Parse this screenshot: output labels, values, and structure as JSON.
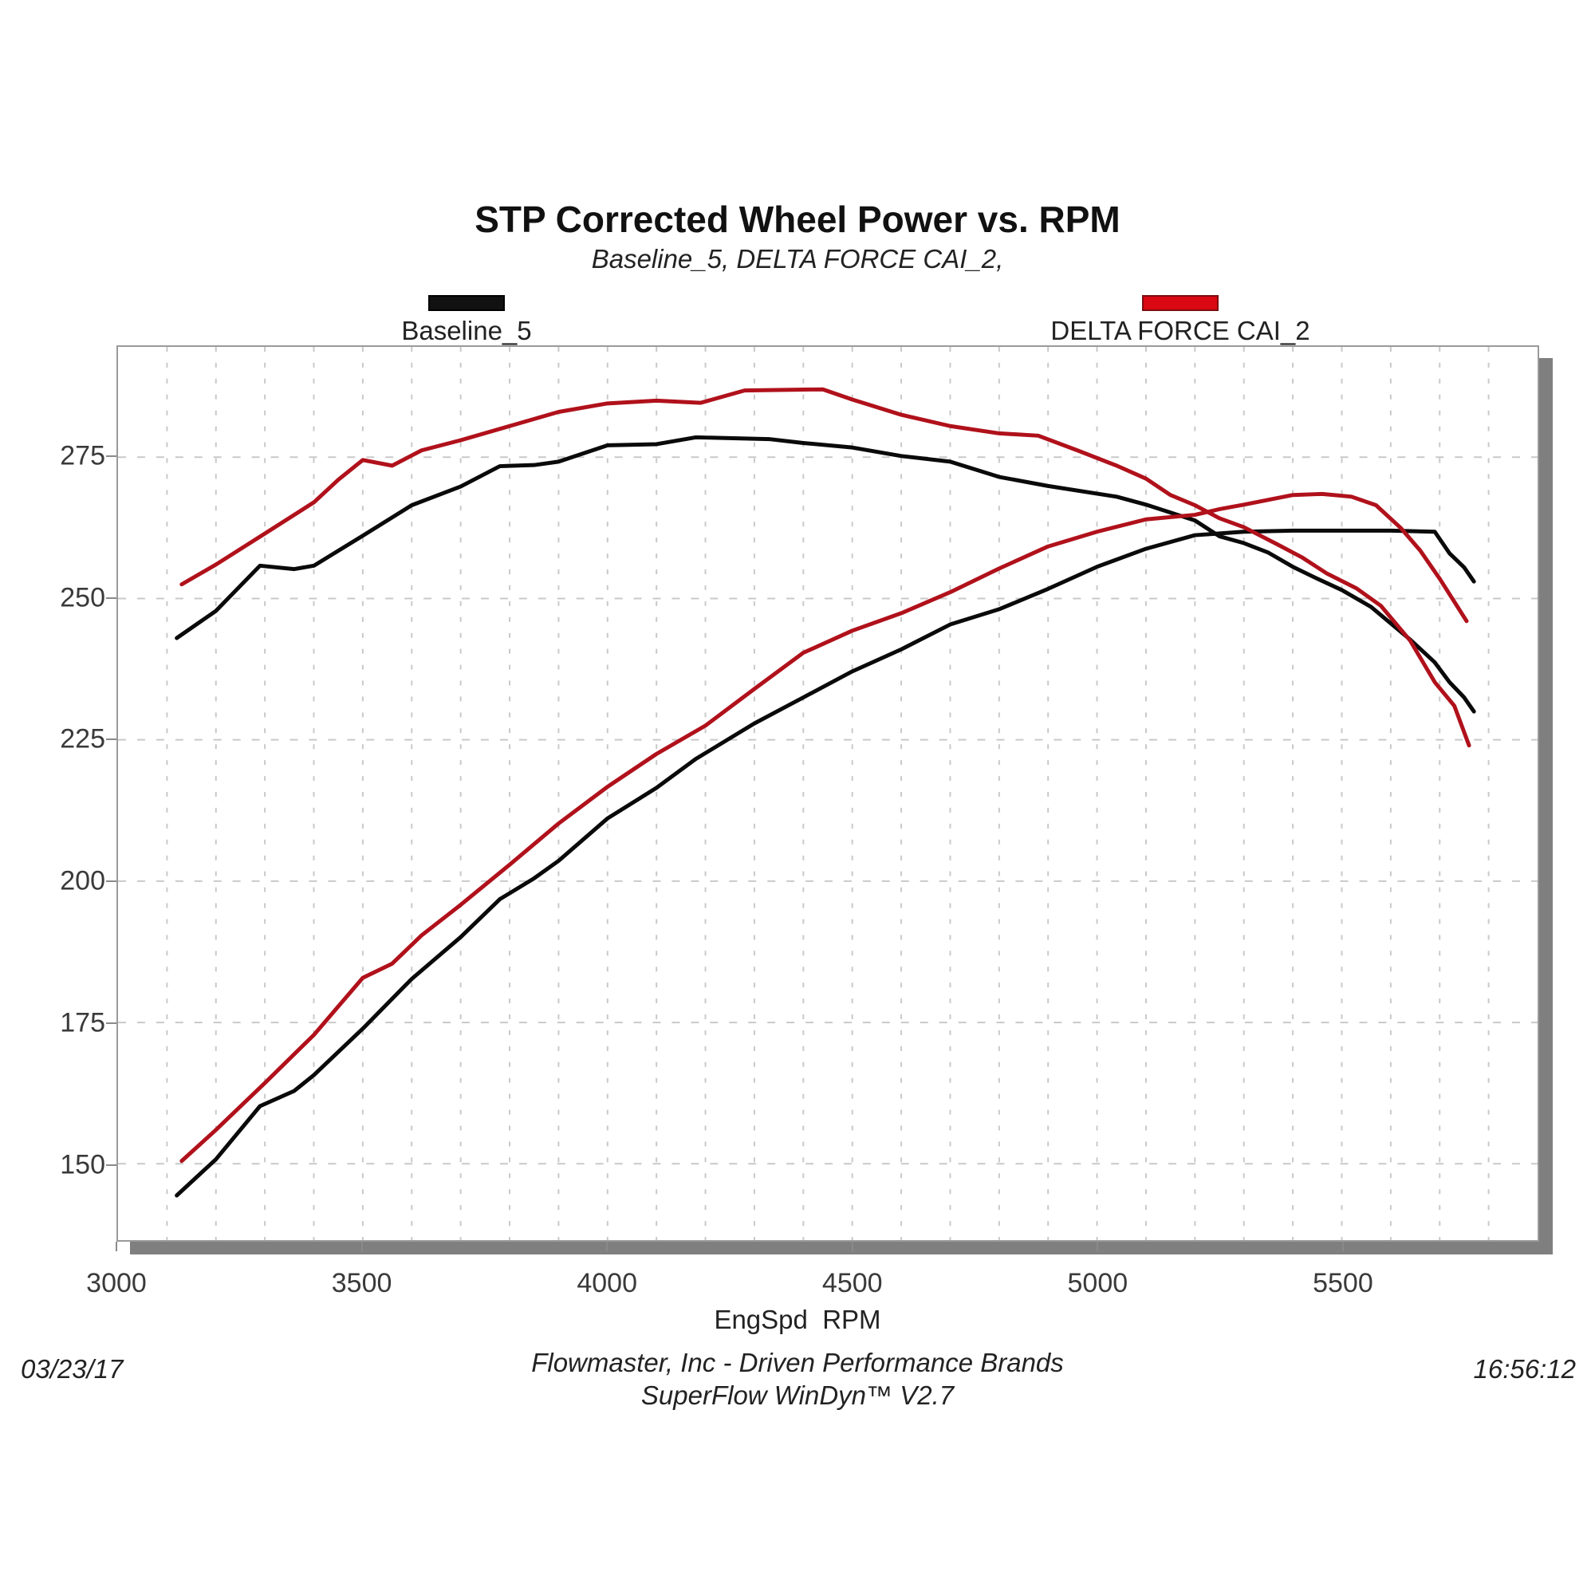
{
  "header": {
    "title": "STP Corrected Wheel Power vs. RPM",
    "subtitle": "Baseline_5, DELTA FORCE CAI_2,"
  },
  "legend": {
    "items": [
      {
        "label": "Baseline_5",
        "color": "#111111"
      },
      {
        "label": "DELTA FORCE CAI_2",
        "color": "#da0812"
      }
    ]
  },
  "footer": {
    "company_line": "Flowmaster, Inc - Driven Performance Brands",
    "software_line": "SuperFlow WinDyn™ V2.7",
    "date": "03/23/17",
    "time": "16:56:12"
  },
  "chart_data": {
    "type": "line",
    "title": "STP Corrected Wheel Power vs. RPM",
    "subtitle": "Baseline_5, DELTA FORCE CAI_2,",
    "xlabel": "EngSpd  RPM",
    "ylabel": "",
    "xlim": [
      3000,
      5900
    ],
    "ylim": [
      136.5,
      294.5
    ],
    "x_ticks": [
      3000,
      3500,
      4000,
      4500,
      5000,
      5500
    ],
    "y_ticks": [
      150,
      175,
      200,
      225,
      250,
      275
    ],
    "x_minor_grid_step": 100,
    "grid": "dashed",
    "legend_position": "top",
    "colors": {
      "baseline": "#0a0a0a",
      "delta_force": "#b0111b",
      "grid": "#c9c9c9",
      "border": "#9a9a9a",
      "shadow": "#7f7f7f"
    },
    "series": [
      {
        "name": "Baseline_5 (torque trace)",
        "color": "#0a0a0a",
        "width": 5,
        "points": [
          [
            3120,
            243.0
          ],
          [
            3200,
            247.8
          ],
          [
            3290,
            255.8
          ],
          [
            3360,
            255.2
          ],
          [
            3400,
            255.8
          ],
          [
            3500,
            261.1
          ],
          [
            3600,
            266.5
          ],
          [
            3700,
            269.8
          ],
          [
            3780,
            273.4
          ],
          [
            3850,
            273.6
          ],
          [
            3900,
            274.2
          ],
          [
            4000,
            277.1
          ],
          [
            4100,
            277.3
          ],
          [
            4180,
            278.5
          ],
          [
            4330,
            278.2
          ],
          [
            4400,
            277.5
          ],
          [
            4500,
            276.7
          ],
          [
            4600,
            275.2
          ],
          [
            4700,
            274.2
          ],
          [
            4800,
            271.5
          ],
          [
            4900,
            269.9
          ],
          [
            5040,
            268.0
          ],
          [
            5100,
            266.6
          ],
          [
            5200,
            263.8
          ],
          [
            5250,
            261.0
          ],
          [
            5300,
            259.8
          ],
          [
            5350,
            258.1
          ],
          [
            5400,
            255.6
          ],
          [
            5450,
            253.5
          ],
          [
            5500,
            251.5
          ],
          [
            5560,
            248.5
          ],
          [
            5640,
            242.7
          ],
          [
            5690,
            238.7
          ],
          [
            5720,
            235.2
          ],
          [
            5750,
            232.5
          ],
          [
            5770,
            230.0
          ]
        ]
      },
      {
        "name": "Baseline_5 (power trace)",
        "color": "#0a0a0a",
        "width": 5,
        "points": [
          [
            3120,
            144.4
          ],
          [
            3200,
            150.8
          ],
          [
            3290,
            160.2
          ],
          [
            3360,
            162.9
          ],
          [
            3400,
            165.7
          ],
          [
            3500,
            173.9
          ],
          [
            3600,
            182.7
          ],
          [
            3700,
            190.1
          ],
          [
            3780,
            196.8
          ],
          [
            3850,
            200.5
          ],
          [
            3900,
            203.6
          ],
          [
            4000,
            211.1
          ],
          [
            4100,
            216.5
          ],
          [
            4180,
            221.6
          ],
          [
            4300,
            227.9
          ],
          [
            4400,
            232.5
          ],
          [
            4500,
            237.1
          ],
          [
            4600,
            241.0
          ],
          [
            4700,
            245.4
          ],
          [
            4800,
            248.1
          ],
          [
            4900,
            251.7
          ],
          [
            5000,
            255.6
          ],
          [
            5100,
            258.8
          ],
          [
            5200,
            261.2
          ],
          [
            5300,
            261.8
          ],
          [
            5400,
            262.0
          ],
          [
            5500,
            262.0
          ],
          [
            5600,
            262.0
          ],
          [
            5690,
            261.8
          ],
          [
            5720,
            258.0
          ],
          [
            5750,
            255.5
          ],
          [
            5770,
            253.0
          ]
        ]
      },
      {
        "name": "DELTA FORCE CAI_2 (torque trace)",
        "color": "#b0111b",
        "width": 5,
        "points": [
          [
            3130,
            252.5
          ],
          [
            3200,
            256.0
          ],
          [
            3300,
            261.5
          ],
          [
            3400,
            267.0
          ],
          [
            3450,
            271.0
          ],
          [
            3500,
            274.5
          ],
          [
            3560,
            273.5
          ],
          [
            3620,
            276.2
          ],
          [
            3700,
            278.0
          ],
          [
            3800,
            280.5
          ],
          [
            3900,
            283.0
          ],
          [
            4000,
            284.5
          ],
          [
            4100,
            285.0
          ],
          [
            4190,
            284.6
          ],
          [
            4280,
            286.8
          ],
          [
            4440,
            287.0
          ],
          [
            4500,
            285.2
          ],
          [
            4600,
            282.5
          ],
          [
            4700,
            280.5
          ],
          [
            4800,
            279.2
          ],
          [
            4880,
            278.8
          ],
          [
            4960,
            276.2
          ],
          [
            5040,
            273.5
          ],
          [
            5100,
            271.2
          ],
          [
            5150,
            268.3
          ],
          [
            5200,
            266.5
          ],
          [
            5250,
            264.2
          ],
          [
            5300,
            262.6
          ],
          [
            5370,
            259.5
          ],
          [
            5420,
            257.2
          ],
          [
            5470,
            254.4
          ],
          [
            5530,
            251.8
          ],
          [
            5580,
            248.7
          ],
          [
            5640,
            242.5
          ],
          [
            5690,
            235.2
          ],
          [
            5730,
            231.0
          ],
          [
            5760,
            224.0
          ]
        ]
      },
      {
        "name": "DELTA FORCE CAI_2 (power trace)",
        "color": "#b0111b",
        "width": 5,
        "points": [
          [
            3130,
            150.5
          ],
          [
            3200,
            156.0
          ],
          [
            3300,
            164.3
          ],
          [
            3400,
            172.8
          ],
          [
            3500,
            182.9
          ],
          [
            3560,
            185.4
          ],
          [
            3620,
            190.4
          ],
          [
            3700,
            195.8
          ],
          [
            3800,
            202.9
          ],
          [
            3900,
            210.2
          ],
          [
            4000,
            216.7
          ],
          [
            4100,
            222.5
          ],
          [
            4200,
            227.5
          ],
          [
            4300,
            234.0
          ],
          [
            4400,
            240.4
          ],
          [
            4500,
            244.3
          ],
          [
            4600,
            247.4
          ],
          [
            4700,
            251.1
          ],
          [
            4800,
            255.3
          ],
          [
            4900,
            259.2
          ],
          [
            5000,
            261.8
          ],
          [
            5100,
            264.0
          ],
          [
            5200,
            264.8
          ],
          [
            5250,
            265.8
          ],
          [
            5300,
            266.6
          ],
          [
            5400,
            268.3
          ],
          [
            5460,
            268.5
          ],
          [
            5520,
            268.0
          ],
          [
            5570,
            266.5
          ],
          [
            5620,
            262.5
          ],
          [
            5660,
            258.5
          ],
          [
            5700,
            253.5
          ],
          [
            5755,
            246.0
          ]
        ]
      }
    ]
  }
}
